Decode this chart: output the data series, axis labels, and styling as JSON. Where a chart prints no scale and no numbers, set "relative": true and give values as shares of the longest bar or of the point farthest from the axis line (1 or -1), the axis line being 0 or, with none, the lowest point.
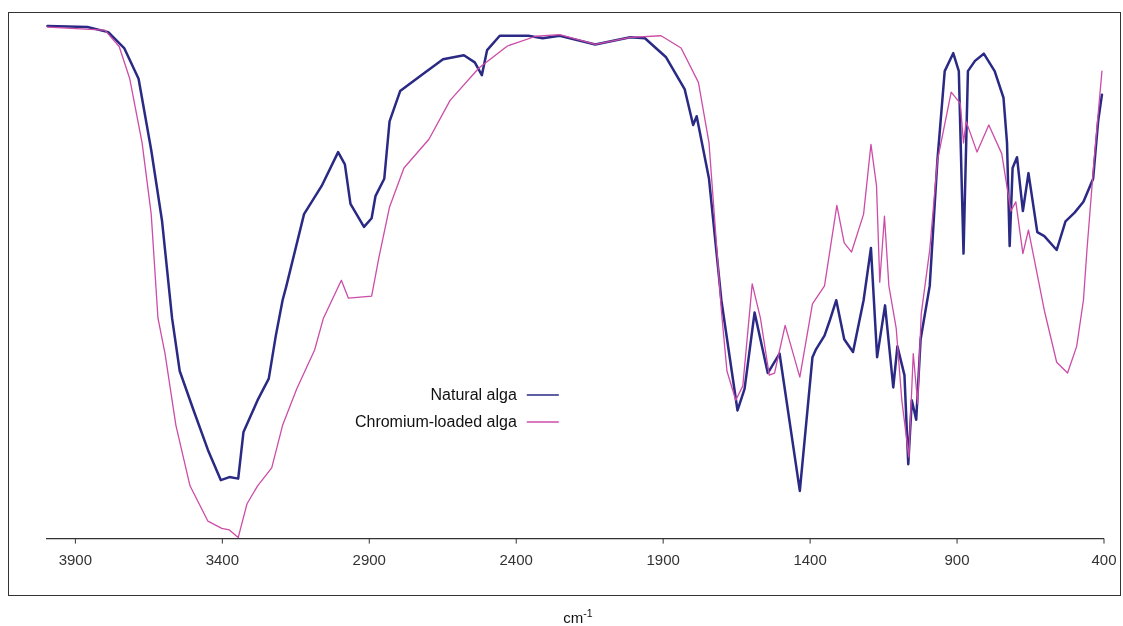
{
  "chart_data": {
    "type": "line",
    "relative": true,
    "xlabel": "cm$^{-1}$",
    "xlim": [
      4000,
      400
    ],
    "xticks": [
      3900,
      3400,
      2900,
      2400,
      1900,
      1400,
      900,
      400
    ],
    "legend": "bottom left",
    "series": [
      {
        "name": "Natural alga",
        "color": "#2a2a85",
        "x": [
          3995,
          3859,
          3788,
          3734,
          3685,
          3642,
          3605,
          3571,
          3545,
          3497,
          3449,
          3405,
          3376,
          3346,
          3328,
          3280,
          3242,
          3218,
          3195,
          3182,
          3122,
          3062,
          3006,
          2983,
          2964,
          2918,
          2892,
          2879,
          2849,
          2831,
          2795,
          2723,
          2649,
          2578,
          2541,
          2517,
          2499,
          2456,
          2359,
          2310,
          2252,
          2131,
          2012,
          1962,
          1890,
          1827,
          1798,
          1786,
          1744,
          1702,
          1647,
          1623,
          1589,
          1544,
          1504,
          1435,
          1392,
          1381,
          1351,
          1334,
          1311,
          1284,
          1254,
          1218,
          1193,
          1172,
          1145,
          1117,
          1103,
          1079,
          1066,
          1054,
          1039,
          1024,
          993,
          967,
          942,
          913,
          894,
          878,
          863,
          839,
          809,
          772,
          742,
          730,
          721,
          711,
          696,
          676,
          657,
          627,
          603,
          561,
          531,
          500,
          470,
          437,
          420,
          407
        ],
        "values": [
          1.0,
          0.998,
          0.988,
          0.957,
          0.897,
          0.758,
          0.619,
          0.43,
          0.327,
          0.249,
          0.173,
          0.114,
          0.12,
          0.117,
          0.208,
          0.27,
          0.312,
          0.396,
          0.465,
          0.493,
          0.633,
          0.688,
          0.754,
          0.73,
          0.653,
          0.608,
          0.625,
          0.668,
          0.702,
          0.814,
          0.873,
          0.904,
          0.935,
          0.943,
          0.929,
          0.904,
          0.953,
          0.981,
          0.981,
          0.976,
          0.981,
          0.964,
          0.978,
          0.976,
          0.939,
          0.877,
          0.807,
          0.824,
          0.702,
          0.465,
          0.25,
          0.292,
          0.441,
          0.323,
          0.361,
          0.093,
          0.354,
          0.368,
          0.396,
          0.424,
          0.465,
          0.389,
          0.364,
          0.465,
          0.567,
          0.354,
          0.455,
          0.295,
          0.375,
          0.319,
          0.145,
          0.27,
          0.232,
          0.389,
          0.493,
          0.737,
          0.912,
          0.947,
          0.912,
          0.556,
          0.912,
          0.932,
          0.946,
          0.912,
          0.86,
          0.772,
          0.571,
          0.723,
          0.744,
          0.639,
          0.713,
          0.598,
          0.59,
          0.563,
          0.619,
          0.636,
          0.657,
          0.702,
          0.814,
          0.866
        ]
      },
      {
        "name": "Chromium-loaded alga",
        "color": "#cc4ca8",
        "x": [
          3995,
          3800,
          3751,
          3715,
          3673,
          3642,
          3619,
          3595,
          3558,
          3510,
          3449,
          3402,
          3376,
          3346,
          3316,
          3280,
          3232,
          3195,
          3147,
          3086,
          3056,
          2995,
          2971,
          2892,
          2867,
          2831,
          2782,
          2697,
          2625,
          2527,
          2430,
          2333,
          2252,
          2131,
          2012,
          1907,
          1839,
          1780,
          1744,
          1702,
          1683,
          1653,
          1629,
          1597,
          1569,
          1539,
          1521,
          1485,
          1435,
          1392,
          1351,
          1309,
          1284,
          1259,
          1218,
          1193,
          1174,
          1163,
          1147,
          1132,
          1107,
          1088,
          1064,
          1049,
          1034,
          1022,
          993,
          967,
          920,
          889,
          878,
          869,
          832,
          792,
          748,
          717,
          700,
          676,
          657,
          603,
          561,
          524,
          493,
          470,
          458,
          434,
          407
        ],
        "values": [
          0.998,
          0.992,
          0.96,
          0.897,
          0.772,
          0.633,
          0.43,
          0.361,
          0.221,
          0.103,
          0.034,
          0.02,
          0.017,
          0.002,
          0.068,
          0.103,
          0.138,
          0.221,
          0.292,
          0.368,
          0.43,
          0.504,
          0.469,
          0.473,
          0.549,
          0.647,
          0.723,
          0.779,
          0.855,
          0.918,
          0.961,
          0.98,
          0.983,
          0.964,
          0.978,
          0.981,
          0.957,
          0.89,
          0.772,
          0.445,
          0.327,
          0.27,
          0.298,
          0.497,
          0.43,
          0.319,
          0.323,
          0.416,
          0.315,
          0.458,
          0.493,
          0.65,
          0.577,
          0.559,
          0.633,
          0.769,
          0.688,
          0.5,
          0.629,
          0.493,
          0.41,
          0.27,
          0.159,
          0.361,
          0.263,
          0.438,
          0.563,
          0.737,
          0.871,
          0.849,
          0.772,
          0.814,
          0.754,
          0.807,
          0.751,
          0.639,
          0.657,
          0.556,
          0.602,
          0.445,
          0.344,
          0.323,
          0.375,
          0.465,
          0.563,
          0.737,
          0.912
        ]
      }
    ]
  }
}
